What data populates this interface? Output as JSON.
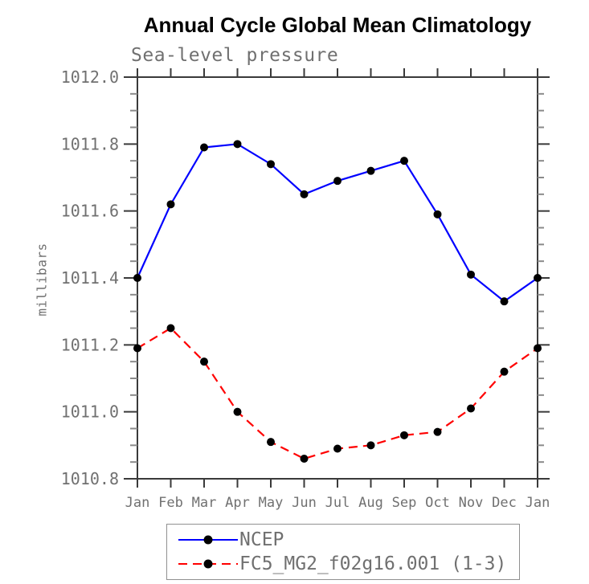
{
  "title": "Annual Cycle Global Mean Climatology",
  "subtitle": "Sea-level pressure",
  "ylabel": "millibars",
  "colors": {
    "ncep_line": "#0000ff",
    "fc5_line": "#ff0000",
    "marker": "#000000",
    "axis": "#3a3a3a",
    "minor_tick": "#8a8a8a",
    "text_gray": "#707070",
    "legend_border": "#909090"
  },
  "legend": {
    "items": [
      {
        "label": "NCEP",
        "color": "#0000ff",
        "style": "solid"
      },
      {
        "label": "FC5_MG2_f02g16.001 (1-3)",
        "color": "#ff0000",
        "style": "dashed"
      }
    ]
  },
  "chart_data": {
    "type": "line",
    "title": "Annual Cycle Global Mean Climatology",
    "subtitle": "Sea-level pressure",
    "xlabel": "",
    "ylabel": "millibars",
    "categories": [
      "Jan",
      "Feb",
      "Mar",
      "Apr",
      "May",
      "Jun",
      "Jul",
      "Aug",
      "Sep",
      "Oct",
      "Nov",
      "Dec",
      "Jan"
    ],
    "ylim": [
      1010.8,
      1012.0
    ],
    "yticks": [
      1010.8,
      1011.0,
      1011.2,
      1011.4,
      1011.6,
      1011.8,
      1012.0
    ],
    "ytick_labels": [
      "1010.8",
      "1011.0",
      "1011.2",
      "1011.4",
      "1011.6",
      "1011.8",
      "1012.0"
    ],
    "y_minor_tick_interval": 0.05,
    "grid": false,
    "legend_position": "bottom",
    "series": [
      {
        "name": "NCEP",
        "color": "#0000ff",
        "line_style": "solid",
        "marker": "filled-circle",
        "marker_color": "#000000",
        "values": [
          1011.4,
          1011.62,
          1011.79,
          1011.8,
          1011.74,
          1011.65,
          1011.69,
          1011.72,
          1011.75,
          1011.59,
          1011.41,
          1011.33,
          1011.4
        ]
      },
      {
        "name": "FC5_MG2_f02g16.001 (1-3)",
        "color": "#ff0000",
        "line_style": "dashed",
        "marker": "filled-circle",
        "marker_color": "#000000",
        "values": [
          1011.19,
          1011.25,
          1011.15,
          1011.0,
          1010.91,
          1010.86,
          1010.89,
          1010.9,
          1010.93,
          1010.94,
          1011.01,
          1011.12,
          1011.19
        ]
      }
    ]
  }
}
